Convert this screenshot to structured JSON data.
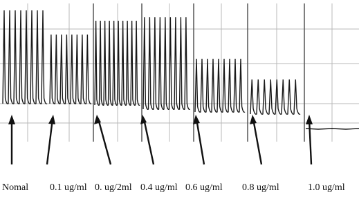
{
  "labels": [
    "Nomal",
    "0.1 ug/ml",
    "0. ug/2ml",
    "0.4 ug/ml",
    "0.6 ug/ml",
    "0.8 ug/ml",
    "1.0 ug/ml"
  ]
}
